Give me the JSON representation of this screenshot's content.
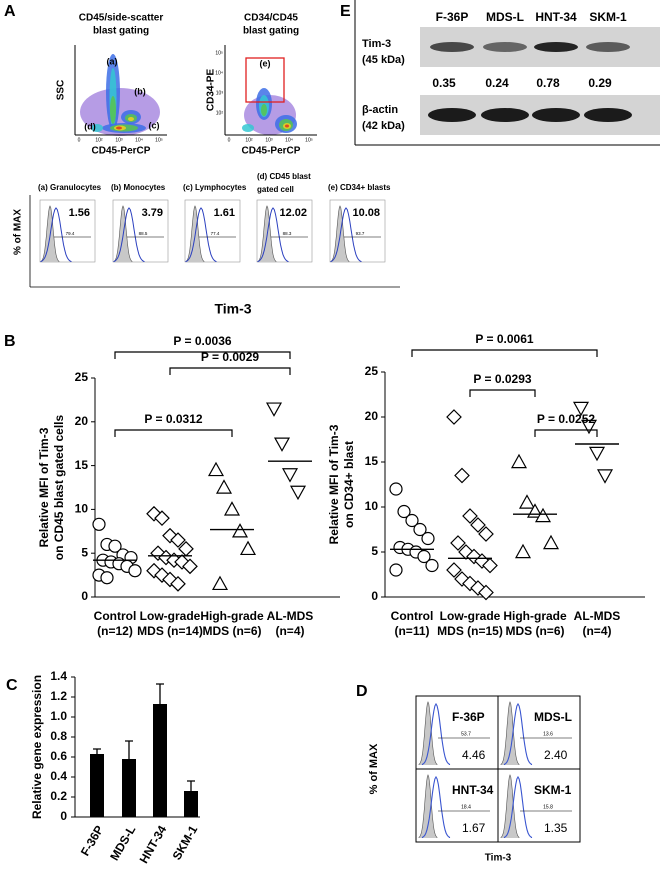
{
  "figure": {
    "panel_letters": [
      "A",
      "B",
      "C",
      "D",
      "E"
    ],
    "gating_plots": [
      {
        "title": [
          "CD45/side-scatter",
          "blast gating"
        ],
        "x_label": "CD45-PerCP",
        "y_label": "SSC",
        "gates": [
          "(a)",
          "(b)",
          "(c)",
          "(d)"
        ],
        "x_ticks": [
          "0",
          "10²",
          "10³",
          "10⁴",
          "10⁵"
        ]
      },
      {
        "title": [
          "CD34/CD45",
          "blast gating"
        ],
        "x_label": "CD45-PerCP",
        "y_label": "CD34-PE",
        "gates": [
          "(e)"
        ],
        "x_ticks": [
          "0",
          "10²",
          "10³",
          "10⁴",
          "10⁵"
        ],
        "y_ticks": [
          "10⁵",
          "10⁴",
          "10³",
          "10²"
        ]
      }
    ],
    "histograms": {
      "y_label": "% of MAX",
      "x_label": "Tim-3",
      "plots": [
        {
          "title": [
            "(a) Granulocytes"
          ],
          "value": "1.56",
          "gate": "79.4"
        },
        {
          "title": [
            "(b) Monocytes"
          ],
          "value": "3.79",
          "gate": "88.5"
        },
        {
          "title": [
            "(c) Lymphocytes"
          ],
          "value": "1.61",
          "gate": "77.4"
        },
        {
          "title": [
            "(d) CD45 blast",
            "gated cell"
          ],
          "value": "12.02",
          "gate": "88.3"
        },
        {
          "title": [
            "(e) CD34+ blasts"
          ],
          "value": "10.08",
          "gate": "93.7"
        }
      ]
    },
    "western_blot": {
      "lanes": [
        "F-36P",
        "MDS-L",
        "HNT-34",
        "SKM-1"
      ],
      "rows": [
        {
          "label": [
            "Tim-3",
            "(45 kDa)"
          ]
        },
        {
          "label": [
            "β-actin",
            "(42 kDa)"
          ]
        }
      ],
      "ratios": [
        "0.35",
        "0.24",
        "0.78",
        "0.29"
      ]
    },
    "cell_line_flow": {
      "y_label": "% of MAX",
      "x_label": "Tim-3",
      "plots": [
        {
          "name": "F-36P",
          "value": "4.46",
          "gate": "53.7"
        },
        {
          "name": "MDS-L",
          "value": "2.40",
          "gate": "13.6"
        },
        {
          "name": "HNT-34",
          "value": "1.67",
          "gate": "18.4"
        },
        {
          "name": "SKM-1",
          "value": "1.35",
          "gate": "15.8"
        }
      ]
    }
  },
  "chart_data": [
    {
      "type": "strip",
      "y_label": [
        "Relative MFI of Tim-3",
        "on CD45 blast gated cells"
      ],
      "categories": [
        "Control",
        "Low-grade",
        "High-grade",
        "AL-MDS"
      ],
      "category_counts": [
        "(n=12)",
        "MDS (n=14)",
        "MDS (n=6)",
        "(n=4)"
      ],
      "markers": [
        "circle",
        "diamond",
        "triangle-up",
        "triangle-down"
      ],
      "values": [
        [
          8.3,
          6.0,
          5.8,
          4.8,
          4.5,
          4.2,
          4.0,
          3.8,
          3.5,
          3.0,
          2.5,
          2.2
        ],
        [
          9.5,
          9.0,
          7.0,
          6.5,
          5.5,
          5.0,
          4.5,
          4.2,
          4.0,
          3.5,
          3.0,
          2.5,
          2.0,
          1.5
        ],
        [
          14.5,
          12.5,
          10.0,
          7.5,
          5.5,
          1.5
        ],
        [
          21.5,
          17.5,
          14.0,
          12.0
        ]
      ],
      "medians": [
        4.2,
        4.7,
        7.7,
        15.5
      ],
      "comparisons": [
        {
          "label": "P = 0.0036",
          "between": [
            "Control",
            "AL-MDS"
          ]
        },
        {
          "label": "P = 0.0029",
          "between": [
            "Low-grade",
            "AL-MDS"
          ]
        },
        {
          "label": "P = 0.0312",
          "between": [
            "Control",
            "High-grade"
          ]
        }
      ],
      "ylim": [
        0,
        25
      ],
      "yticks": [
        0,
        5,
        10,
        15,
        20,
        25
      ]
    },
    {
      "type": "strip",
      "y_label": [
        "Relative MFI of Tim-3",
        "on CD34+ blast"
      ],
      "categories": [
        "Control",
        "Low-grade",
        "High-grade",
        "AL-MDS"
      ],
      "category_counts": [
        "(n=11)",
        "MDS (n=15)",
        "MDS (n=6)",
        "(n=4)"
      ],
      "markers": [
        "circle",
        "diamond",
        "triangle-up",
        "triangle-down"
      ],
      "values": [
        [
          12.0,
          9.5,
          8.5,
          7.5,
          6.5,
          5.5,
          5.3,
          5.0,
          4.5,
          3.5,
          3.0
        ],
        [
          20.0,
          13.5,
          9.0,
          8.0,
          7.0,
          6.0,
          5.0,
          4.5,
          4.0,
          3.5,
          3.0,
          2.0,
          1.5,
          1.0,
          0.5
        ],
        [
          15.0,
          10.5,
          9.5,
          9.0,
          6.0,
          5.0
        ],
        [
          21.0,
          19.0,
          16.0,
          13.5
        ]
      ],
      "medians": [
        5.3,
        4.3,
        9.2,
        17.0
      ],
      "comparisons": [
        {
          "label": "P = 0.0061",
          "between": [
            "Control",
            "AL-MDS"
          ]
        },
        {
          "label": "P = 0.0293",
          "between": [
            "Low-grade",
            "High-grade"
          ]
        },
        {
          "label": "P = 0.0252",
          "between": [
            "High-grade",
            "AL-MDS"
          ]
        }
      ],
      "ylim": [
        0,
        25
      ],
      "yticks": [
        0,
        5,
        10,
        15,
        20,
        25
      ]
    },
    {
      "type": "bar",
      "y_label": "Relative gene expression",
      "categories": [
        "F-36P",
        "MDS-L",
        "HNT-34",
        "SKM-1"
      ],
      "values": [
        0.63,
        0.58,
        1.13,
        0.26
      ],
      "errors": [
        0.05,
        0.18,
        0.2,
        0.1
      ],
      "color": "#000000",
      "ylim": [
        0,
        1.4
      ],
      "yticks": [
        0,
        0.2,
        0.4,
        0.6,
        0.8,
        {
          "value": 1.0,
          "label": "1.0"
        },
        1.2,
        1.4
      ]
    }
  ]
}
